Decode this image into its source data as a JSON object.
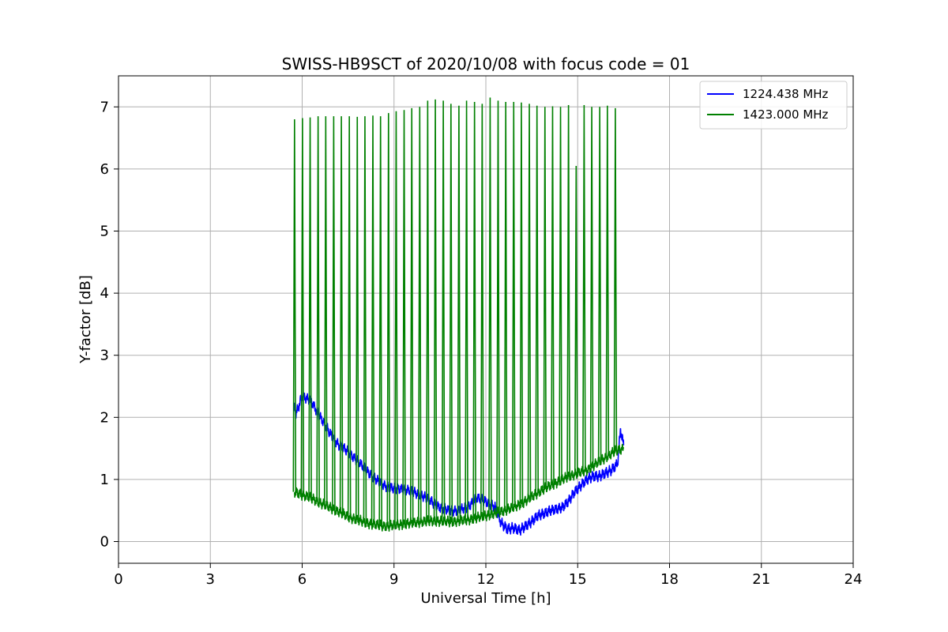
{
  "chart_data": {
    "type": "line",
    "title": "SWISS-HB9SCT of 2020/10/08 with focus code = 01",
    "xlabel": "Universal Time [h]",
    "ylabel": "Y-factor [dB]",
    "xlim": [
      0,
      24
    ],
    "ylim": [
      -0.35,
      7.5
    ],
    "xticks": [
      0,
      3,
      6,
      9,
      12,
      15,
      18,
      21,
      24
    ],
    "yticks": [
      0,
      1,
      2,
      3,
      4,
      5,
      6,
      7
    ],
    "xtick_labels": [
      "0",
      "3",
      "6",
      "9",
      "12",
      "15",
      "18",
      "21",
      "24"
    ],
    "ytick_labels": [
      "0",
      "1",
      "2",
      "3",
      "4",
      "5",
      "6",
      "7"
    ],
    "grid": true,
    "legend_position": "top-right",
    "series": [
      {
        "name": "1224.438 MHz",
        "color": "#0000ff",
        "x": [
          5.75,
          5.8,
          6.0,
          6.3,
          6.6,
          6.9,
          7.2,
          7.5,
          7.8,
          8.1,
          8.4,
          8.7,
          9.0,
          9.3,
          9.6,
          9.9,
          10.2,
          10.5,
          10.8,
          11.1,
          11.4,
          11.7,
          12.0,
          12.3,
          12.5,
          12.7,
          12.9,
          13.1,
          13.3,
          13.5,
          13.7,
          13.9,
          14.1,
          14.3,
          14.5,
          14.7,
          14.9,
          15.1,
          15.3,
          15.5,
          15.7,
          15.9,
          16.1,
          16.3,
          16.4,
          16.5
        ],
        "y": [
          2.2,
          2.05,
          2.35,
          2.25,
          2.0,
          1.75,
          1.55,
          1.45,
          1.3,
          1.15,
          1.0,
          0.9,
          0.85,
          0.85,
          0.8,
          0.75,
          0.65,
          0.55,
          0.5,
          0.5,
          0.55,
          0.7,
          0.65,
          0.55,
          0.3,
          0.2,
          0.22,
          0.18,
          0.25,
          0.32,
          0.42,
          0.45,
          0.5,
          0.52,
          0.55,
          0.65,
          0.8,
          0.9,
          1.0,
          1.05,
          1.05,
          1.1,
          1.15,
          1.25,
          1.8,
          1.55
        ]
      },
      {
        "name": "1423.000 MHz",
        "color": "#008000",
        "x": [
          5.75,
          6.0,
          6.3,
          6.6,
          6.9,
          7.2,
          7.5,
          7.8,
          8.1,
          8.4,
          8.7,
          9.0,
          9.3,
          9.6,
          9.9,
          10.2,
          10.5,
          10.8,
          11.1,
          11.4,
          11.7,
          12.0,
          12.3,
          12.6,
          12.9,
          13.2,
          13.5,
          13.8,
          14.1,
          14.4,
          14.7,
          15.0,
          15.3,
          15.6,
          15.9,
          16.2,
          16.5
        ],
        "y": [
          0.8,
          0.75,
          0.7,
          0.62,
          0.55,
          0.48,
          0.4,
          0.35,
          0.3,
          0.27,
          0.25,
          0.26,
          0.28,
          0.3,
          0.32,
          0.33,
          0.33,
          0.32,
          0.33,
          0.35,
          0.38,
          0.42,
          0.45,
          0.5,
          0.55,
          0.62,
          0.72,
          0.82,
          0.9,
          0.97,
          1.05,
          1.1,
          1.15,
          1.25,
          1.35,
          1.45,
          1.5
        ],
        "spikes": {
          "x": [
            5.75,
            6.01,
            6.26,
            6.52,
            6.77,
            7.03,
            7.28,
            7.54,
            7.8,
            8.05,
            8.31,
            8.56,
            8.82,
            9.07,
            9.33,
            9.58,
            9.84,
            10.1,
            10.35,
            10.61,
            10.86,
            11.12,
            11.37,
            11.63,
            11.88,
            12.14,
            12.4,
            12.65,
            12.91,
            13.16,
            13.42,
            13.67,
            13.93,
            14.18,
            14.44,
            14.7,
            14.95,
            15.21,
            15.46,
            15.72,
            15.97,
            16.23
          ],
          "y": [
            6.8,
            6.82,
            6.83,
            6.85,
            6.85,
            6.85,
            6.85,
            6.85,
            6.84,
            6.85,
            6.86,
            6.85,
            6.9,
            6.93,
            6.95,
            6.98,
            7.0,
            7.1,
            7.12,
            7.1,
            7.05,
            7.02,
            7.1,
            7.08,
            7.05,
            7.15,
            7.1,
            7.08,
            7.08,
            7.07,
            7.05,
            7.02,
            7.0,
            7.01,
            7.0,
            7.03,
            6.05,
            7.03,
            7.0,
            7.0,
            7.02,
            6.98
          ]
        }
      }
    ]
  }
}
